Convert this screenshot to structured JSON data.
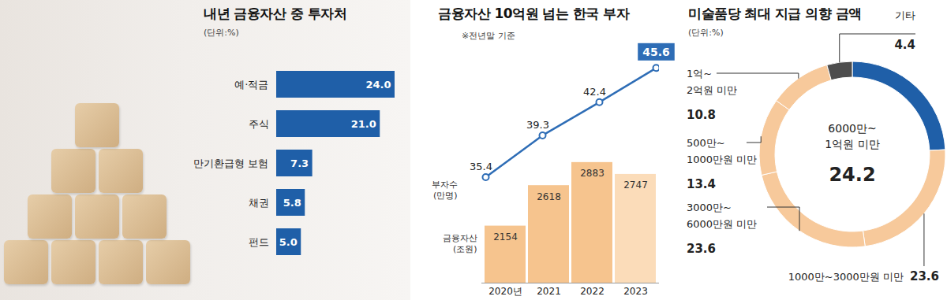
{
  "chart_data": [
    {
      "type": "bar",
      "title": "내년 금융자산 중 투자처",
      "subtitle": "(단위:%)",
      "orientation": "horizontal",
      "categories": [
        "예·적금",
        "주식",
        "만기환급형 보험",
        "채권",
        "펀드"
      ],
      "values": [
        24.0,
        21.0,
        7.3,
        5.8,
        5.0
      ],
      "value_labels": [
        "24.0",
        "21.0",
        "7.3",
        "5.8",
        "5.0"
      ],
      "color": "#1f5fa8",
      "data_labels": true,
      "tick_labels": "y"
    },
    {
      "type": "bar",
      "title": "금융자산 10억원 넘는 한국 부자",
      "subtitle": "※전년말 기준",
      "categories": [
        "2020년",
        "2021",
        "2022",
        "2023"
      ],
      "series": [
        {
          "name": "금융자산 (조원)",
          "type": "bar",
          "colors": [
            "#f6c48e",
            "#f6c48e",
            "#f6c48e",
            "#fbdcb9"
          ],
          "values": [
            2154,
            2618,
            2883,
            2747
          ]
        },
        {
          "name": "부자수 (만명)",
          "type": "line",
          "color": "#2e6db6",
          "marker": "circle",
          "axis": "y2",
          "values": [
            35.4,
            39.3,
            42.4,
            45.6
          ]
        }
      ],
      "ylim": [
        1500,
        4200
      ],
      "y2lim": [
        25.5,
        47.5
      ],
      "data_labels": true,
      "tick_labels": "x"
    },
    {
      "type": "donut",
      "title": "미술품당 최대 지급 의향 금액",
      "subtitle": "(단위:%)",
      "categories": [
        "6000만~1억원 미만",
        "1000만~3000만원 미만",
        "3000만~6000만원 미만",
        "500만~1000만원 미만",
        "1억~2억원 미만",
        "기타"
      ],
      "values": [
        24.2,
        23.6,
        23.6,
        13.4,
        10.8,
        4.4
      ],
      "colors": [
        "#1f5fa8",
        "#f7c99b",
        "#f7c99b",
        "#f7c99b",
        "#f7c99b",
        "#4d4d4d"
      ],
      "data_labels": true
    }
  ]
}
